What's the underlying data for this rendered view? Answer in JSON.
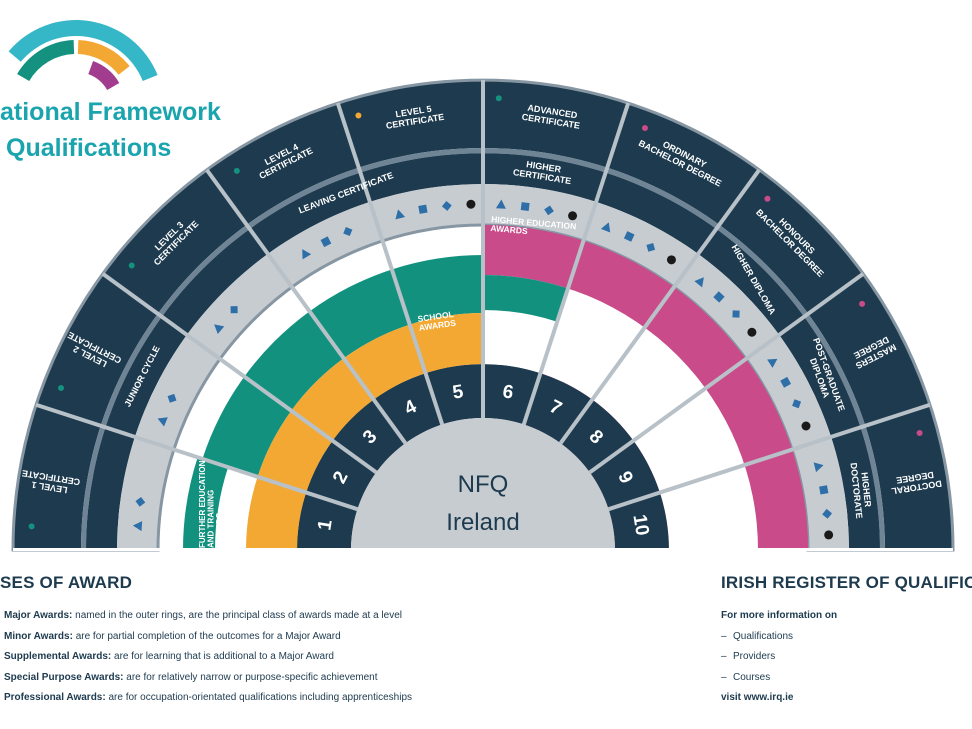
{
  "brand": {
    "title_line1": "ational Framework",
    "title_line2": "Qualifications",
    "arc_colors": [
      "#14927f",
      "#f3a833",
      "#a23c8e",
      "#35b7c8"
    ]
  },
  "center": {
    "line1": "NFQ",
    "line2": "Ireland"
  },
  "levels": [
    "1",
    "2",
    "3",
    "4",
    "5",
    "6",
    "7",
    "8",
    "9",
    "10"
  ],
  "award_zones": {
    "further_education": "FURTHER EDUCATION AND TRAINING AWARDS",
    "school": "SCHOOL AWARDS",
    "higher_education": "HIGHER EDUCATION AWARDS"
  },
  "outer_awards": {
    "level1": "LEVEL 1 CERTIFICATE",
    "level2": "LEVEL 2 CERTIFICATE",
    "level3": "LEVEL 3 CERTIFICATE",
    "level4": "LEVEL 4 CERTIFICATE",
    "level5": "LEVEL 5 CERTIFICATE",
    "advanced_certificate": "ADVANCED CERTIFICATE",
    "ordinary_bachelor": "ORDINARY BACHELOR DEGREE",
    "honours_bachelor": "HONOURS BACHELOR DEGREE",
    "masters": "MASTERS DEGREE",
    "doctoral": "DOCTORAL DEGREE"
  },
  "inner_awards": {
    "junior_cycle": "JUNIOR CYCLE",
    "leaving_certificate": "LEAVING CERTIFICATE",
    "higher_certificate": "HIGHER CERTIFICATE",
    "higher_diploma": "HIGHER DIPLOMA",
    "postgraduate_diploma": "POST-GRADUATE DIPLOMA",
    "higher_doctorate": "HIGHER DOCTORATE"
  },
  "classes_of_award": {
    "heading": "SES OF AWARD",
    "items": [
      {
        "term": "Major Awards:",
        "desc": "named in the outer rings, are the principal class of awards made at a level"
      },
      {
        "term": "Minor Awards:",
        "desc": "are for partial completion of the outcomes for a Major Award"
      },
      {
        "term": "Supplemental Awards:",
        "desc": "are for learning that is additional to a Major Award"
      },
      {
        "term": "Special Purpose Awards:",
        "desc": "are for relatively narrow or purpose-specific achievement"
      },
      {
        "term": "Professional Awards:",
        "desc": "are for occupation-orientated qualifications including apprenticeships"
      }
    ]
  },
  "register": {
    "heading": "IRISH REGISTER OF QUALIFICAT",
    "intro": "For more information on",
    "items": [
      "Qualifications",
      "Providers",
      "Courses"
    ],
    "visit": "visit www.irq.ie"
  },
  "colors": {
    "navy": "#1d3a4e",
    "teal": "#13917f",
    "orange": "#f3a833",
    "magenta": "#c94b8a",
    "light_grey": "#c7ccd1",
    "blue_marker": "#2f6fa8"
  }
}
